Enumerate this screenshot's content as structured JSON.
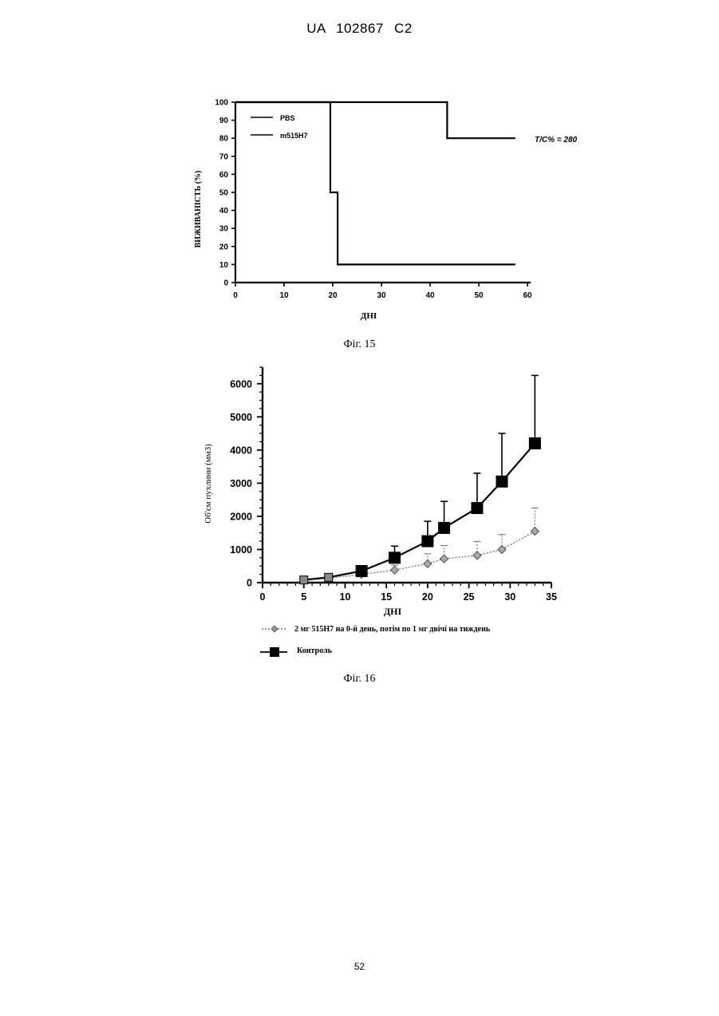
{
  "header": {
    "doc_id": "UA   102867   C2"
  },
  "figures": [
    {
      "caption": "Фіг. 15"
    },
    {
      "caption": "Фіг. 16"
    }
  ],
  "page_number": "52",
  "chart_data": [
    {
      "type": "line",
      "subtype": "step",
      "xlabel": "ДНІ",
      "ylabel": "ВИЖИВАНІСТЬ (%)",
      "xlim": [
        0,
        60
      ],
      "ylim": [
        0,
        100
      ],
      "xticks": [
        0,
        10,
        20,
        30,
        40,
        50,
        60
      ],
      "yticks": [
        0,
        10,
        20,
        30,
        40,
        50,
        60,
        70,
        80,
        90,
        100
      ],
      "legend_position": "top-left",
      "annotation": "T/C% = 280",
      "series": [
        {
          "name": "PBS",
          "x": [
            0,
            19.5,
            19.5,
            21,
            21,
            57.5
          ],
          "y": [
            100,
            100,
            50,
            50,
            10,
            10
          ]
        },
        {
          "name": "m515H7",
          "x": [
            0,
            43.5,
            43.5,
            57.5
          ],
          "y": [
            100,
            100,
            80,
            80
          ]
        }
      ]
    },
    {
      "type": "line",
      "xlabel": "ДНІ",
      "ylabel": "Об'єм пухлини (мм3)",
      "xlim": [
        0,
        35
      ],
      "ylim": [
        0,
        6500
      ],
      "xticks": [
        0,
        5,
        10,
        15,
        20,
        25,
        30,
        35
      ],
      "yticks": [
        0,
        1000,
        2000,
        3000,
        4000,
        5000,
        6000
      ],
      "legend_position": "bottom",
      "series": [
        {
          "name": "2 мг 515H7 на 0-й день, потім по 1 мг двічі на тиждень",
          "marker": "diamond",
          "x": [
            5,
            8,
            12,
            16,
            20,
            22,
            26,
            29,
            33
          ],
          "y": [
            80,
            130,
            250,
            380,
            570,
            720,
            820,
            1000,
            1550
          ],
          "error": [
            0,
            0,
            100,
            150,
            300,
            400,
            420,
            450,
            700
          ]
        },
        {
          "name": "Контроль",
          "marker": "square",
          "x": [
            5,
            8,
            12,
            16,
            20,
            22,
            26,
            29,
            33
          ],
          "y": [
            80,
            160,
            350,
            750,
            1250,
            1650,
            2250,
            3050,
            4200
          ],
          "error": [
            0,
            0,
            80,
            350,
            600,
            800,
            1050,
            1450,
            2050
          ]
        }
      ]
    }
  ]
}
